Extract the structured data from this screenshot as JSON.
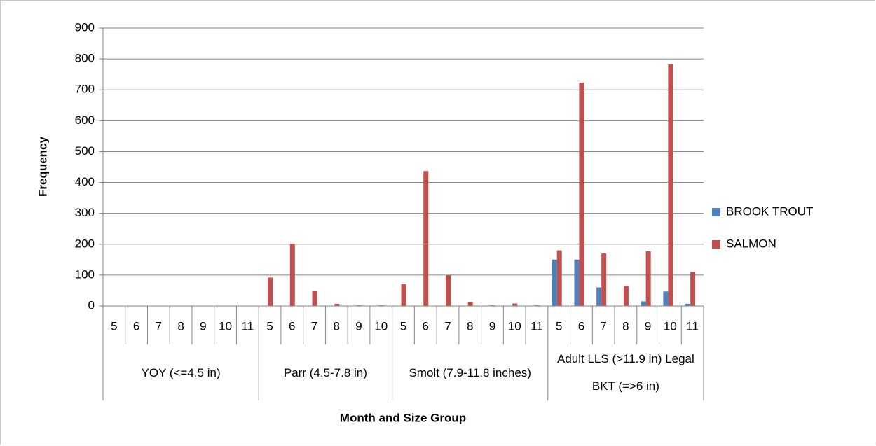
{
  "chart_data": {
    "type": "bar",
    "x_label": "Month and Size Group",
    "y_label": "Frequency",
    "groups": [
      {
        "label": "YOY (<=4.5 in)",
        "categories": [
          "5",
          "6",
          "7",
          "8",
          "9",
          "10",
          "11"
        ]
      },
      {
        "label": "Parr (4.5-7.8 in)",
        "categories": [
          "5",
          "6",
          "7",
          "8",
          "9",
          "10"
        ]
      },
      {
        "label": "Smolt (7.9-11.8 inches)",
        "categories": [
          "5",
          "6",
          "7",
          "8",
          "9",
          "10",
          "11"
        ]
      },
      {
        "label": "Adult LLS (>11.9 in) Legal BKT (=>6 in)",
        "categories": [
          "5",
          "6",
          "7",
          "8",
          "9",
          "10",
          "11"
        ]
      }
    ],
    "series": [
      {
        "name": "BROOK TROUT",
        "color": "#4f81bd",
        "values": [
          0,
          0,
          0,
          0,
          0,
          0,
          0,
          0,
          0,
          0,
          0,
          0,
          0,
          0,
          0,
          0,
          0,
          0,
          0,
          0,
          150,
          150,
          60,
          0,
          15,
          47,
          7
        ]
      },
      {
        "name": "SALMON",
        "color": "#c0504d",
        "values": [
          0,
          0,
          0,
          0,
          0,
          0,
          0,
          92,
          202,
          48,
          7,
          2,
          2,
          70,
          437,
          100,
          12,
          2,
          8,
          2,
          180,
          723,
          170,
          65,
          177,
          782,
          110
        ]
      }
    ],
    "ylim": [
      0,
      900
    ],
    "yticks": [
      0,
      100,
      200,
      300,
      400,
      500,
      600,
      700,
      800,
      900
    ],
    "grid": true,
    "legend": "right"
  }
}
